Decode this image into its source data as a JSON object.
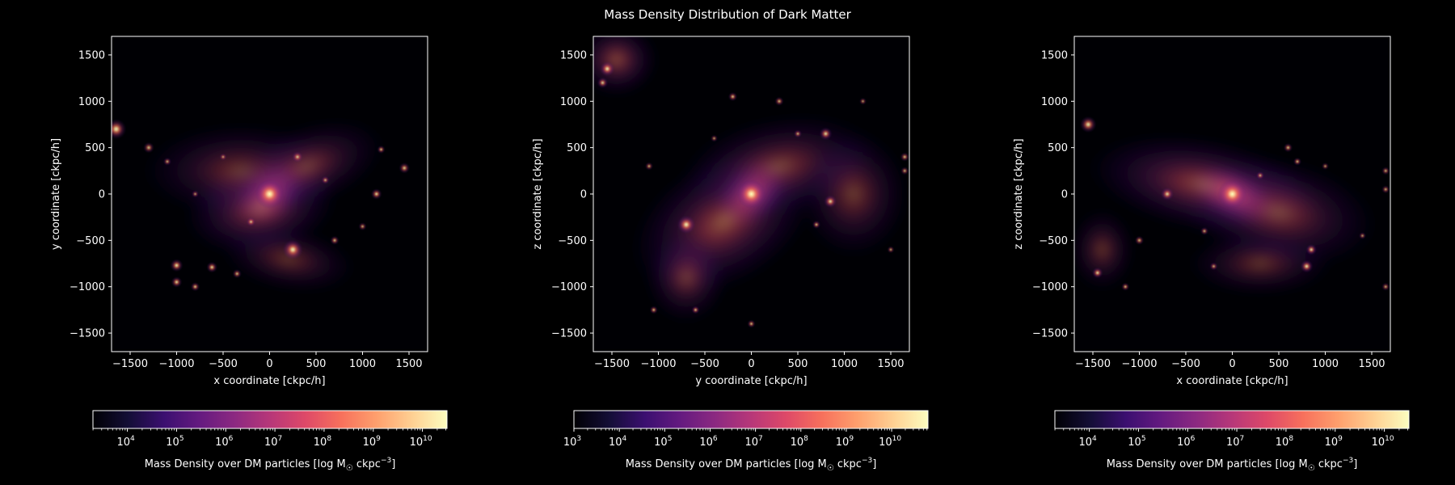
{
  "title": "Mass Density Distribution of Dark Matter",
  "chart_data": [
    {
      "type": "heatmap",
      "xlabel": "x coordinate [ckpc/h]",
      "ylabel": "y coordinate [ckpc/h]",
      "xlim": [
        -1700,
        1700
      ],
      "ylim": [
        -1700,
        1700
      ],
      "xticks": [
        -1500,
        -1000,
        -500,
        0,
        500,
        1000,
        1500
      ],
      "yticks": [
        -1500,
        -1000,
        -500,
        0,
        500,
        1000,
        1500
      ],
      "xtick_labels": [
        "−1500",
        "−1000",
        "−500",
        "0",
        "500",
        "1000",
        "1500"
      ],
      "ytick_labels": [
        "−1500",
        "−1000",
        "−500",
        "0",
        "500",
        "1000",
        "1500"
      ],
      "colormap": "magma",
      "colorbar": {
        "label": "Mass Density over DM particles [log M",
        "label_sun": "☉",
        "label_unit": " ckpc",
        "label_exp": "−3",
        "label_close": "]",
        "range_exp": [
          3.3,
          10.5
        ],
        "tick_exps": [
          4,
          5,
          6,
          7,
          8,
          9,
          10
        ],
        "tick_labels": [
          "4",
          "5",
          "6",
          "7",
          "8",
          "9",
          "10"
        ]
      },
      "diffuse": [
        {
          "x": 0,
          "y": 0,
          "rx": 420,
          "ry": 300,
          "rot": 35,
          "level": 1.0
        },
        {
          "x": -100,
          "y": -150,
          "rx": 850,
          "ry": 520,
          "rot": 10,
          "level": 0.6
        },
        {
          "x": -300,
          "y": 250,
          "rx": 1100,
          "ry": 520,
          "rot": 0,
          "level": 0.45
        },
        {
          "x": 200,
          "y": -700,
          "rx": 750,
          "ry": 350,
          "rot": -10,
          "level": 0.4
        },
        {
          "x": 400,
          "y": 300,
          "rx": 900,
          "ry": 450,
          "rot": 20,
          "level": 0.45
        }
      ],
      "clip": {
        "type": "ymax",
        "value": 870
      },
      "halos": [
        {
          "x": 0,
          "y": 0,
          "r": 160,
          "level": 1.0
        },
        {
          "x": 250,
          "y": -600,
          "r": 110,
          "level": 0.9
        },
        {
          "x": -1000,
          "y": -770,
          "r": 70,
          "level": 0.85
        },
        {
          "x": -620,
          "y": -790,
          "r": 60,
          "level": 0.8
        },
        {
          "x": -1000,
          "y": -950,
          "r": 60,
          "level": 0.8
        },
        {
          "x": -800,
          "y": -1000,
          "r": 50,
          "level": 0.75
        },
        {
          "x": -350,
          "y": -860,
          "r": 50,
          "level": 0.7
        },
        {
          "x": 1150,
          "y": 0,
          "r": 60,
          "level": 0.8
        },
        {
          "x": 1450,
          "y": 280,
          "r": 60,
          "level": 0.75
        },
        {
          "x": 1200,
          "y": 480,
          "r": 45,
          "level": 0.7
        },
        {
          "x": -1650,
          "y": 700,
          "r": 110,
          "level": 0.9
        },
        {
          "x": -1300,
          "y": 500,
          "r": 60,
          "level": 0.7
        },
        {
          "x": -1100,
          "y": 350,
          "r": 45,
          "level": 0.65
        },
        {
          "x": 300,
          "y": 400,
          "r": 60,
          "level": 0.7
        },
        {
          "x": -200,
          "y": -300,
          "r": 50,
          "level": 0.7
        },
        {
          "x": 700,
          "y": -500,
          "r": 50,
          "level": 0.7
        },
        {
          "x": 1000,
          "y": -350,
          "r": 45,
          "level": 0.65
        },
        {
          "x": -500,
          "y": 400,
          "r": 40,
          "level": 0.6
        },
        {
          "x": 600,
          "y": 150,
          "r": 45,
          "level": 0.65
        },
        {
          "x": -800,
          "y": 0,
          "r": 40,
          "level": 0.6
        }
      ]
    },
    {
      "type": "heatmap",
      "xlabel": "y coordinate [ckpc/h]",
      "ylabel": "z coordinate [ckpc/h]",
      "xlim": [
        -1700,
        1700
      ],
      "ylim": [
        -1700,
        1700
      ],
      "xticks": [
        -1500,
        -1000,
        -500,
        0,
        500,
        1000,
        1500
      ],
      "yticks": [
        -1500,
        -1000,
        -500,
        0,
        500,
        1000,
        1500
      ],
      "xtick_labels": [
        "−1500",
        "−1000",
        "−500",
        "0",
        "500",
        "1000",
        "1500"
      ],
      "ytick_labels": [
        "−1500",
        "−1000",
        "−500",
        "0",
        "500",
        "1000",
        "1500"
      ],
      "colormap": "magma",
      "colorbar": {
        "label": "Mass Density over DM particles [log M",
        "label_sun": "☉",
        "label_unit": " ckpc",
        "label_exp": "−3",
        "label_close": "]",
        "range_exp": [
          3,
          10.8
        ],
        "tick_exps": [
          3,
          4,
          5,
          6,
          7,
          8,
          9,
          10
        ],
        "tick_labels": [
          "3",
          "4",
          "5",
          "6",
          "7",
          "8",
          "9",
          "10"
        ]
      },
      "diffuse": [
        {
          "x": 0,
          "y": 0,
          "rx": 450,
          "ry": 320,
          "rot": 40,
          "level": 1.0
        },
        {
          "x": -300,
          "y": -300,
          "rx": 1100,
          "ry": 700,
          "rot": 30,
          "level": 0.6
        },
        {
          "x": 300,
          "y": 300,
          "rx": 1100,
          "ry": 550,
          "rot": 10,
          "level": 0.5
        },
        {
          "x": -700,
          "y": -900,
          "rx": 450,
          "ry": 500,
          "rot": 0,
          "level": 0.45
        },
        {
          "x": -1450,
          "y": 1450,
          "rx": 450,
          "ry": 400,
          "rot": 0,
          "level": 0.55
        },
        {
          "x": 1100,
          "y": 0,
          "rx": 600,
          "ry": 700,
          "rot": 0,
          "level": 0.45
        }
      ],
      "clip": null,
      "halos": [
        {
          "x": 0,
          "y": 0,
          "r": 160,
          "level": 1.0
        },
        {
          "x": -700,
          "y": -330,
          "r": 100,
          "level": 0.9
        },
        {
          "x": 800,
          "y": 650,
          "r": 70,
          "level": 0.8
        },
        {
          "x": 850,
          "y": -80,
          "r": 70,
          "level": 0.8
        },
        {
          "x": -1550,
          "y": 1350,
          "r": 80,
          "level": 0.85
        },
        {
          "x": -1600,
          "y": 1200,
          "r": 60,
          "level": 0.75
        },
        {
          "x": -200,
          "y": 1050,
          "r": 50,
          "level": 0.75
        },
        {
          "x": 300,
          "y": 1000,
          "r": 50,
          "level": 0.7
        },
        {
          "x": -1100,
          "y": 300,
          "r": 45,
          "level": 0.65
        },
        {
          "x": -1050,
          "y": -1250,
          "r": 45,
          "level": 0.7
        },
        {
          "x": -600,
          "y": -1250,
          "r": 45,
          "level": 0.7
        },
        {
          "x": 0,
          "y": -1400,
          "r": 45,
          "level": 0.7
        },
        {
          "x": 1650,
          "y": 400,
          "r": 50,
          "level": 0.7
        },
        {
          "x": 1650,
          "y": 250,
          "r": 45,
          "level": 0.65
        },
        {
          "x": 700,
          "y": -330,
          "r": 45,
          "level": 0.7
        },
        {
          "x": 1500,
          "y": -600,
          "r": 40,
          "level": 0.6
        },
        {
          "x": -400,
          "y": 600,
          "r": 40,
          "level": 0.6
        },
        {
          "x": 500,
          "y": 650,
          "r": 45,
          "level": 0.65
        },
        {
          "x": 1200,
          "y": 1000,
          "r": 40,
          "level": 0.6
        }
      ]
    },
    {
      "type": "heatmap",
      "xlabel": "x coordinate [ckpc/h]",
      "ylabel": "z coordinate [ckpc/h]",
      "xlim": [
        -1700,
        1700
      ],
      "ylim": [
        -1700,
        1700
      ],
      "xticks": [
        -1500,
        -1000,
        -500,
        0,
        500,
        1000,
        1500
      ],
      "yticks": [
        -1500,
        -1000,
        -500,
        0,
        500,
        1000,
        1500
      ],
      "xtick_labels": [
        "−1500",
        "−1000",
        "−500",
        "0",
        "500",
        "1000",
        "1500"
      ],
      "ytick_labels": [
        "−1500",
        "−1000",
        "−500",
        "0",
        "500",
        "1000",
        "1500"
      ],
      "colormap": "magma",
      "colorbar": {
        "label": "Mass Density over DM particles [log M",
        "label_sun": "☉",
        "label_unit": " ckpc",
        "label_exp": "−3",
        "label_close": "]",
        "range_exp": [
          3.3,
          10.5
        ],
        "tick_exps": [
          4,
          5,
          6,
          7,
          8,
          9,
          10
        ],
        "tick_labels": [
          "4",
          "5",
          "6",
          "7",
          "8",
          "9",
          "10"
        ]
      },
      "diffuse": [
        {
          "x": 0,
          "y": 0,
          "rx": 500,
          "ry": 280,
          "rot": -25,
          "level": 1.0
        },
        {
          "x": -300,
          "y": 100,
          "rx": 1300,
          "ry": 520,
          "rot": -10,
          "level": 0.6
        },
        {
          "x": 500,
          "y": -200,
          "rx": 1100,
          "ry": 600,
          "rot": -10,
          "level": 0.5
        },
        {
          "x": 300,
          "y": -750,
          "rx": 800,
          "ry": 350,
          "rot": 0,
          "level": 0.4
        },
        {
          "x": -1400,
          "y": -600,
          "rx": 350,
          "ry": 450,
          "rot": 0,
          "level": 0.4
        }
      ],
      "clip": {
        "type": "ymax",
        "value": 870
      },
      "halos": [
        {
          "x": 0,
          "y": 0,
          "r": 160,
          "level": 1.0
        },
        {
          "x": -700,
          "y": 0,
          "r": 70,
          "level": 0.8
        },
        {
          "x": 800,
          "y": -780,
          "r": 70,
          "level": 0.85
        },
        {
          "x": 850,
          "y": -600,
          "r": 60,
          "level": 0.8
        },
        {
          "x": -1450,
          "y": -850,
          "r": 60,
          "level": 0.8
        },
        {
          "x": -1150,
          "y": -1000,
          "r": 45,
          "level": 0.7
        },
        {
          "x": -1550,
          "y": 750,
          "r": 90,
          "level": 0.85
        },
        {
          "x": 600,
          "y": 500,
          "r": 50,
          "level": 0.7
        },
        {
          "x": 700,
          "y": 350,
          "r": 45,
          "level": 0.7
        },
        {
          "x": -1000,
          "y": -500,
          "r": 50,
          "level": 0.7
        },
        {
          "x": 1650,
          "y": 250,
          "r": 45,
          "level": 0.65
        },
        {
          "x": 1650,
          "y": 50,
          "r": 45,
          "level": 0.65
        },
        {
          "x": 1650,
          "y": -1000,
          "r": 45,
          "level": 0.65
        },
        {
          "x": 1400,
          "y": -450,
          "r": 40,
          "level": 0.6
        },
        {
          "x": 300,
          "y": 200,
          "r": 45,
          "level": 0.65
        },
        {
          "x": -300,
          "y": -400,
          "r": 45,
          "level": 0.65
        },
        {
          "x": -200,
          "y": -780,
          "r": 45,
          "level": 0.65
        },
        {
          "x": 1000,
          "y": 300,
          "r": 40,
          "level": 0.6
        }
      ]
    }
  ]
}
